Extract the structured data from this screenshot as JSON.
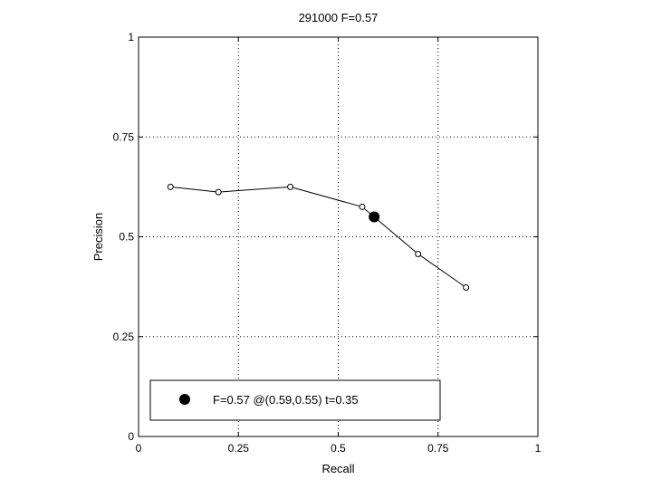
{
  "chart_data": {
    "type": "line",
    "title": "291000 F=0.57",
    "xlabel": "Recall",
    "ylabel": "Precision",
    "xlim": [
      0,
      1
    ],
    "ylim": [
      0,
      1
    ],
    "grid": true,
    "xticks": [
      0,
      0.25,
      0.5,
      0.75,
      1
    ],
    "xtick_labels": [
      "0",
      "0.25",
      "0.5",
      "0.75",
      "1"
    ],
    "yticks": [
      0,
      0.25,
      0.5,
      0.75,
      1
    ],
    "ytick_labels": [
      "0",
      "0.25",
      "0.5",
      "0.75",
      "1"
    ],
    "series": [
      {
        "x": [
          0.08,
          0.2,
          0.38,
          0.56,
          0.7,
          0.82
        ],
        "y": [
          0.625,
          0.612,
          0.625,
          0.575,
          0.457,
          0.373
        ]
      }
    ],
    "best_point": {
      "x": 0.59,
      "y": 0.55
    },
    "legend": {
      "placement": "bottom-left",
      "label": "F=0.57 @(0.59,0.55) t=0.35"
    }
  }
}
